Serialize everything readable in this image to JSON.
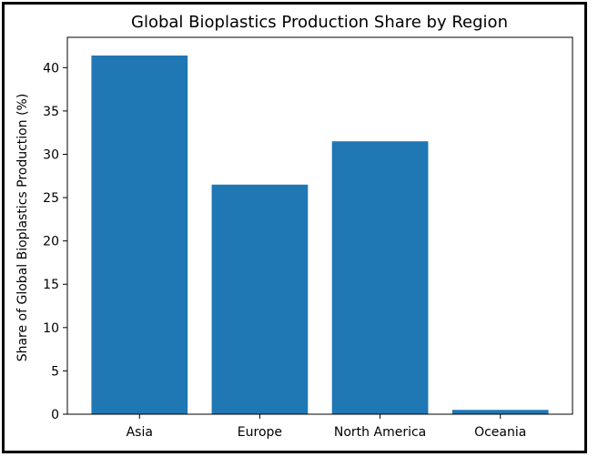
{
  "chart_data": {
    "type": "bar",
    "title": "Global Bioplastics Production Share by Region",
    "xlabel": "",
    "ylabel": "Share of Global Bioplastics Production (%)",
    "categories": [
      "Asia",
      "Europe",
      "North America",
      "Oceania"
    ],
    "values": [
      41.4,
      26.5,
      31.5,
      0.5
    ],
    "ylim": [
      0,
      43.5
    ],
    "yticks": [
      0,
      5,
      10,
      15,
      20,
      25,
      30,
      35,
      40
    ],
    "bar_color": "#1f77b4",
    "grid": false,
    "legend": "none"
  }
}
